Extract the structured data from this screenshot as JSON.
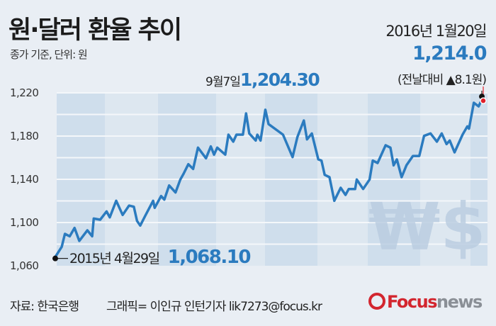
{
  "header": {
    "title": "원·달러 환율 추이",
    "subtitle": "종가 기준, 단위: 원",
    "latest_date": "2016년 1월20일",
    "latest_value": "1,214.0",
    "change": "(전날대비 ▲8.1원)"
  },
  "annotations": {
    "peak_date": "9월7일",
    "peak_value": "1,204.30",
    "start_date": "2015년 4월29일",
    "start_value": "1,068.10"
  },
  "footer": {
    "source": "자료: 한국은행",
    "credit": "그래픽= 이인규 인턴기자 lik7273@focus.kr",
    "logo_text": "Focusnews"
  },
  "colors": {
    "line": "#2b7bbf",
    "accent_value": "#2b7bbf",
    "latest_marker": "#e0202a",
    "logo": "#d3262f"
  },
  "watermark": "₩$",
  "chart_data": {
    "type": "line",
    "title": "원·달러 환율 추이",
    "ylabel": "원",
    "ylim": [
      1060,
      1220
    ],
    "yticks": [
      "1,220",
      "1,180",
      "1,140",
      "1,100",
      "1,060"
    ],
    "ytick_values": [
      1220,
      1180,
      1140,
      1100,
      1060
    ],
    "xlim": [
      "2015-04-29",
      "2016-01-20"
    ],
    "grid": true,
    "series": [
      {
        "points": [
          [
            "2015-04-29",
            1068.1
          ],
          [
            "2015-05-03",
            1077.5
          ],
          [
            "2015-05-05",
            1089.5
          ],
          [
            "2015-05-08",
            1087.3
          ],
          [
            "2015-05-11",
            1095.0
          ],
          [
            "2015-05-14",
            1083.0
          ],
          [
            "2015-05-19",
            1092.8
          ],
          [
            "2015-05-22",
            1087.3
          ],
          [
            "2015-05-23",
            1103.7
          ],
          [
            "2015-05-27",
            1102.6
          ],
          [
            "2015-05-31",
            1110.3
          ],
          [
            "2015-06-02",
            1104.8
          ],
          [
            "2015-06-06",
            1120.1
          ],
          [
            "2015-06-10",
            1107.0
          ],
          [
            "2015-06-14",
            1115.7
          ],
          [
            "2015-06-17",
            1114.6
          ],
          [
            "2015-06-19",
            1101.5
          ],
          [
            "2015-06-21",
            1097.2
          ],
          [
            "2015-06-24",
            1105.9
          ],
          [
            "2015-06-29",
            1120.1
          ],
          [
            "2015-06-30",
            1113.6
          ],
          [
            "2015-07-04",
            1124.5
          ],
          [
            "2015-07-06",
            1121.2
          ],
          [
            "2015-07-09",
            1134.3
          ],
          [
            "2015-07-13",
            1127.8
          ],
          [
            "2015-07-16",
            1139.8
          ],
          [
            "2015-07-18",
            1145.2
          ],
          [
            "2015-07-21",
            1154.0
          ],
          [
            "2015-07-24",
            1149.6
          ],
          [
            "2015-07-27",
            1169.3
          ],
          [
            "2015-08-01",
            1159.5
          ],
          [
            "2015-08-04",
            1170.4
          ],
          [
            "2015-08-06",
            1162.8
          ],
          [
            "2015-08-08",
            1169.3
          ],
          [
            "2015-08-13",
            1162.8
          ],
          [
            "2015-08-15",
            1181.3
          ],
          [
            "2015-08-18",
            1174.8
          ],
          [
            "2015-08-20",
            1181.3
          ],
          [
            "2015-08-24",
            1181.3
          ],
          [
            "2015-08-26",
            1201.0
          ],
          [
            "2015-08-28",
            1182.4
          ],
          [
            "2015-09-01",
            1175.9
          ],
          [
            "2015-09-02",
            1181.3
          ],
          [
            "2015-09-04",
            1175.9
          ],
          [
            "2015-09-07",
            1204.3
          ],
          [
            "2015-09-09",
            1191.1
          ],
          [
            "2015-09-18",
            1181.3
          ],
          [
            "2015-09-24",
            1160.5
          ],
          [
            "2015-09-27",
            1179.1
          ],
          [
            "2015-10-01",
            1194.4
          ],
          [
            "2015-10-03",
            1176.9
          ],
          [
            "2015-10-06",
            1182.4
          ],
          [
            "2015-10-10",
            1158.4
          ],
          [
            "2015-10-12",
            1157.3
          ],
          [
            "2015-10-14",
            1144.1
          ],
          [
            "2015-10-17",
            1142.0
          ],
          [
            "2015-10-20",
            1120.1
          ],
          [
            "2015-10-24",
            1132.1
          ],
          [
            "2015-10-27",
            1125.6
          ],
          [
            "2015-10-29",
            1131.0
          ],
          [
            "2015-11-02",
            1131.0
          ],
          [
            "2015-11-03",
            1139.8
          ],
          [
            "2015-11-07",
            1131.0
          ],
          [
            "2015-11-11",
            1139.8
          ],
          [
            "2015-11-13",
            1157.3
          ],
          [
            "2015-11-16",
            1155.1
          ],
          [
            "2015-11-21",
            1171.5
          ],
          [
            "2015-11-24",
            1169.3
          ],
          [
            "2015-11-26",
            1152.9
          ],
          [
            "2015-11-28",
            1158.4
          ],
          [
            "2015-12-01",
            1142.0
          ],
          [
            "2015-12-04",
            1152.9
          ],
          [
            "2015-12-08",
            1161.6
          ],
          [
            "2015-12-12",
            1161.6
          ],
          [
            "2015-12-15",
            1180.2
          ],
          [
            "2015-12-19",
            1182.4
          ],
          [
            "2015-12-23",
            1174.8
          ],
          [
            "2015-12-26",
            1182.4
          ],
          [
            "2015-12-29",
            1172.6
          ],
          [
            "2015-12-31",
            1175.9
          ],
          [
            "2016-01-03",
            1164.9
          ],
          [
            "2016-01-08",
            1181.3
          ],
          [
            "2016-01-11",
            1189.0
          ],
          [
            "2016-01-12",
            1186.8
          ],
          [
            "2016-01-15",
            1210.8
          ],
          [
            "2016-01-18",
            1207.5
          ],
          [
            "2016-01-20",
            1214.0
          ]
        ]
      }
    ]
  }
}
